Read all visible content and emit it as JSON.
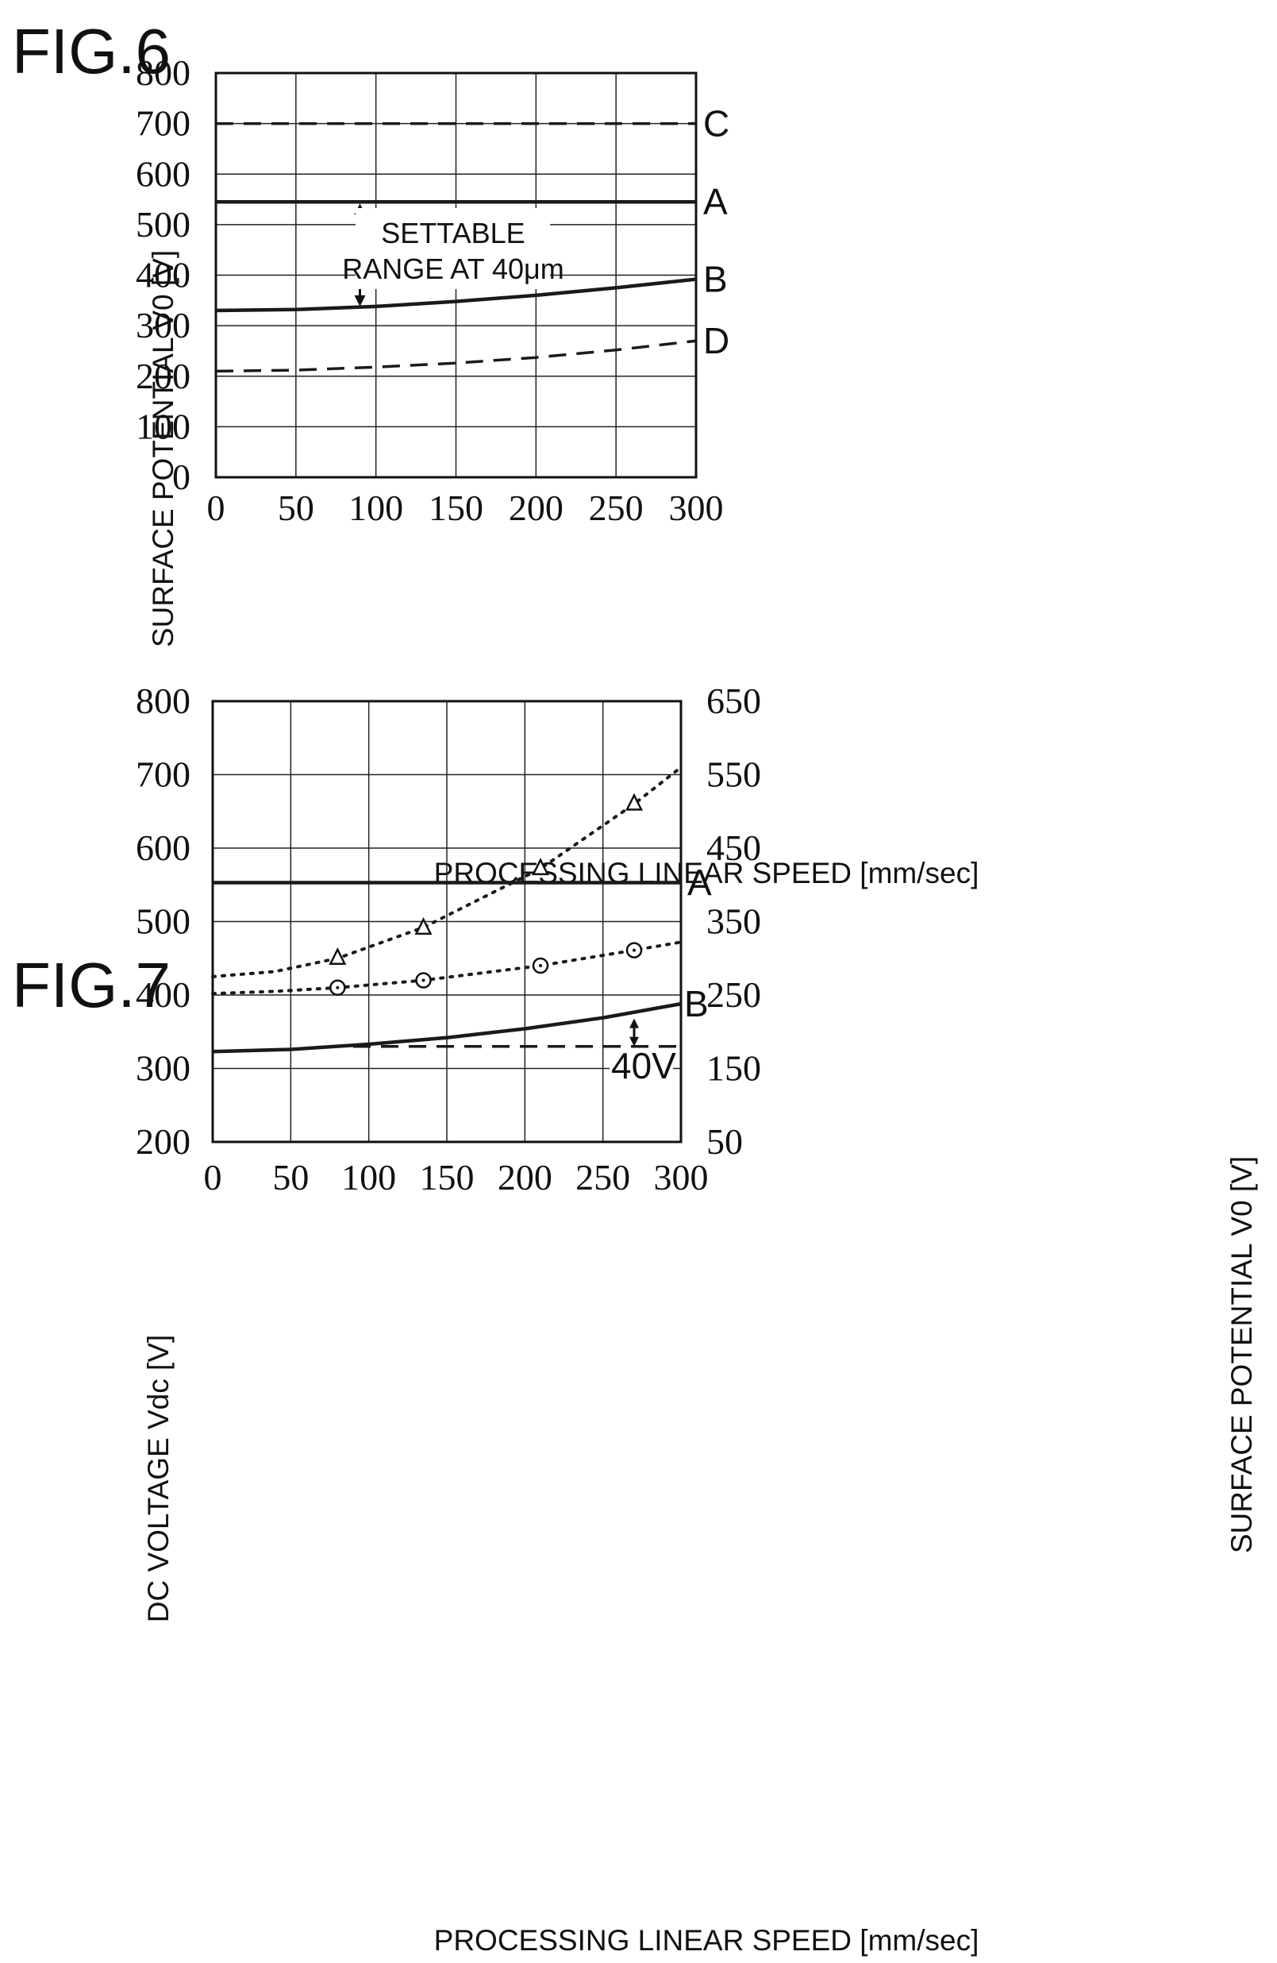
{
  "chart_data": [
    {
      "type": "line",
      "figure_label": "FIG.6",
      "xlabel": "PROCESSING LINEAR SPEED [mm/sec]",
      "ylabel": "SURFACE POTENTIAL V0 [V]",
      "xlim": [
        0,
        300
      ],
      "ylim": [
        0,
        800
      ],
      "x_ticks": [
        "0",
        "50",
        "100",
        "150",
        "200",
        "250",
        "300"
      ],
      "y_ticks": [
        "0",
        "100",
        "200",
        "300",
        "400",
        "500",
        "600",
        "700",
        "800"
      ],
      "grid": true,
      "series": [
        {
          "name": "C",
          "style": "dashed",
          "x": [
            0,
            300
          ],
          "y": [
            700,
            700
          ]
        },
        {
          "name": "A",
          "style": "solid",
          "x": [
            0,
            300
          ],
          "y": [
            545,
            545
          ]
        },
        {
          "name": "B",
          "style": "solid",
          "x": [
            0,
            50,
            100,
            150,
            200,
            250,
            300
          ],
          "y": [
            330,
            332,
            338,
            348,
            360,
            375,
            392
          ]
        },
        {
          "name": "D",
          "style": "dashed",
          "x": [
            0,
            50,
            100,
            150,
            200,
            250,
            300
          ],
          "y": [
            210,
            212,
            218,
            226,
            237,
            252,
            270
          ]
        }
      ],
      "annotations": [
        {
          "text_lines": [
            "SETTABLE",
            "RANGE AT 40μm"
          ],
          "arrow_x": 90,
          "arrow_from_y": 545,
          "arrow_to_y": 335
        }
      ]
    },
    {
      "type": "line",
      "figure_label": "FIG.7",
      "xlabel": "PROCESSING LINEAR SPEED [mm/sec]",
      "ylabel": "DC VOLTAGE Vdc [V]",
      "y2label": "SURFACE POTENTIAL V0 [V]",
      "xlim": [
        0,
        300
      ],
      "ylim": [
        200,
        800
      ],
      "y2lim": [
        50,
        650
      ],
      "x_ticks": [
        "0",
        "50",
        "100",
        "150",
        "200",
        "250",
        "300"
      ],
      "y_ticks": [
        "200",
        "300",
        "400",
        "500",
        "600",
        "700",
        "800"
      ],
      "y2_ticks": [
        "50",
        "150",
        "250",
        "350",
        "450",
        "550",
        "650"
      ],
      "grid": true,
      "series": [
        {
          "name": "A",
          "style": "solid",
          "axis": "right",
          "x": [
            0,
            300
          ],
          "y": [
            403,
            403
          ]
        },
        {
          "name": "B",
          "style": "solid",
          "axis": "right",
          "x": [
            0,
            50,
            100,
            150,
            200,
            250,
            300
          ],
          "y": [
            173,
            176,
            183,
            192,
            204,
            219,
            238
          ]
        },
        {
          "style": "dashed",
          "axis": "right",
          "x": [
            90,
            300
          ],
          "y": [
            180,
            180
          ]
        },
        {
          "style": "dotted",
          "marker": "triangle",
          "axis": "left",
          "x": [
            0,
            40,
            80,
            135,
            210,
            270,
            300
          ],
          "y": [
            425,
            432,
            450,
            492,
            572,
            660,
            710
          ]
        },
        {
          "style": "dotted",
          "marker": "circle",
          "axis": "left",
          "x": [
            0,
            40,
            80,
            135,
            210,
            270,
            300
          ],
          "y": [
            402,
            405,
            410,
            420,
            440,
            461,
            472
          ]
        }
      ],
      "markers": [
        {
          "shape": "triangle",
          "x": [
            80,
            135,
            210,
            270
          ],
          "y": [
            450,
            491,
            572,
            660
          ]
        },
        {
          "shape": "circle",
          "x": [
            80,
            135,
            210,
            270
          ],
          "y": [
            410,
            420,
            440,
            461
          ]
        }
      ],
      "annotations": [
        {
          "text": "40V",
          "arrow_x": 270,
          "arrow_from_y": 218,
          "arrow_to_y": 180
        }
      ]
    }
  ]
}
